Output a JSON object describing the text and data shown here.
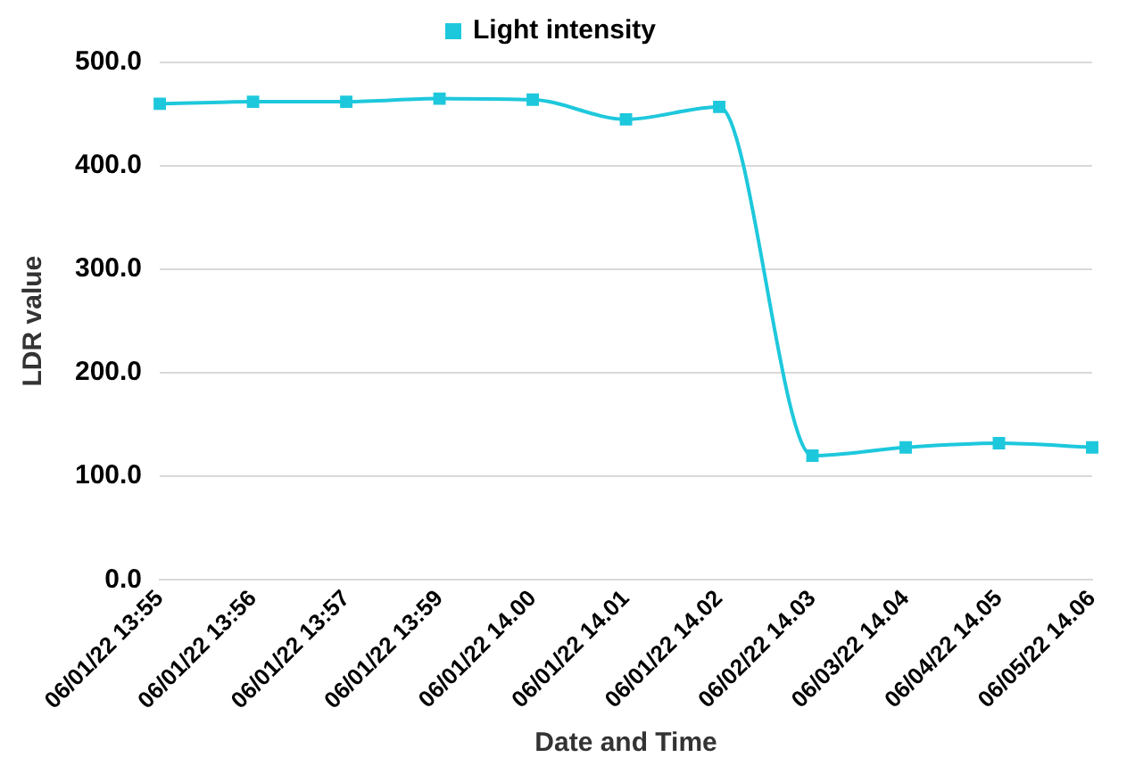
{
  "chart_data": {
    "type": "line",
    "xlabel": "Date and Time",
    "ylabel": "LDR value",
    "categories": [
      "06/01/22 13:55",
      "06/01/22 13:56",
      "06/01/22 13:57",
      "06/01/22 13:59",
      "06/01/22 14.00",
      "06/01/22 14.01",
      "06/01/22 14.02",
      "06/02/22 14.03",
      "06/03/22 14.04",
      "06/04/22 14.05",
      "06/05/22 14.06"
    ],
    "series": [
      {
        "name": "Light intensity",
        "color": "#1ec8dc",
        "values": [
          460,
          462,
          462,
          465,
          464,
          445,
          457,
          120,
          128,
          132,
          128
        ]
      }
    ],
    "ylim": [
      0,
      500
    ],
    "yticks": [
      {
        "value": 0,
        "label": "0.0"
      },
      {
        "value": 100,
        "label": "100.0"
      },
      {
        "value": 200,
        "label": "200.0"
      },
      {
        "value": 300,
        "label": "300.0"
      },
      {
        "value": 400,
        "label": "400.0"
      },
      {
        "value": 500,
        "label": "500.0"
      }
    ],
    "grid": "y",
    "legend": "top",
    "marker": "square",
    "line_style": "solid"
  }
}
